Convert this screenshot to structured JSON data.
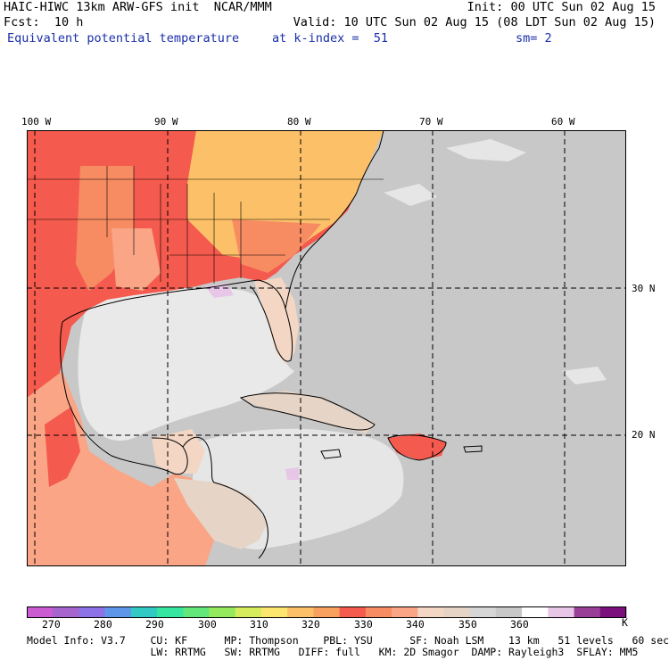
{
  "header": {
    "left_line1": "HAIC-HIWC 13km ARW-GFS init  NCAR/MMM",
    "left_line2": "Fcst:  10 h",
    "left_line3": "Equivalent potential temperature",
    "right_line1": "Init: 00 UTC Sun 02 Aug 15",
    "right_line2": "Valid: 10 UTC Sun 02 Aug 15 (08 LDT Sun 02 Aug 15)",
    "mid_line3": "at k-index =  51",
    "right_line3": "sm= 2"
  },
  "map": {
    "lon_ticks": [
      "100 W",
      "90 W",
      "80 W",
      "70 W",
      "60 W"
    ],
    "lat_ticks": [
      "30 N",
      "20 N"
    ],
    "colors": {
      "border": "#000000",
      "gridline": "#000000",
      "ocean_gray": "#c8c8c8",
      "gulf_light": "#e6e6e6",
      "land_red": "#f55a4e",
      "land_orange": "#f78c63",
      "land_yellow": "#fcc168",
      "land_peach": "#f9a586",
      "land_tan": "#f3d6c3"
    }
  },
  "colorbar": {
    "colors": [
      "#cb5bd1",
      "#a565cc",
      "#8d71e6",
      "#5e97ea",
      "#30c9c4",
      "#35e6a0",
      "#63e77a",
      "#94e95c",
      "#d6ec5d",
      "#fce66f",
      "#fcc168",
      "#f8a15e",
      "#f55a4e",
      "#f78c63",
      "#f9a586",
      "#f3d6c3",
      "#e6d4c6",
      "#d6d6d6",
      "#c8c8c8",
      "#ffffff",
      "#e7c6e8",
      "#9a3f98",
      "#7b0f7c"
    ],
    "labels": [
      "270",
      "280",
      "290",
      "300",
      "310",
      "320",
      "330",
      "340",
      "350",
      "360"
    ],
    "unit": "K"
  },
  "footer": {
    "line1": "Model Info: V3.7    CU: KF      MP: Thompson    PBL: YSU      SF: Noah LSM    13 km   51 levels   60 sec",
    "line2": "                    LW: RRTMG   SW: RRTMG   DIFF: full   KM: 2D Smagor  DAMP: Rayleigh3  SFLAY: MM5"
  }
}
